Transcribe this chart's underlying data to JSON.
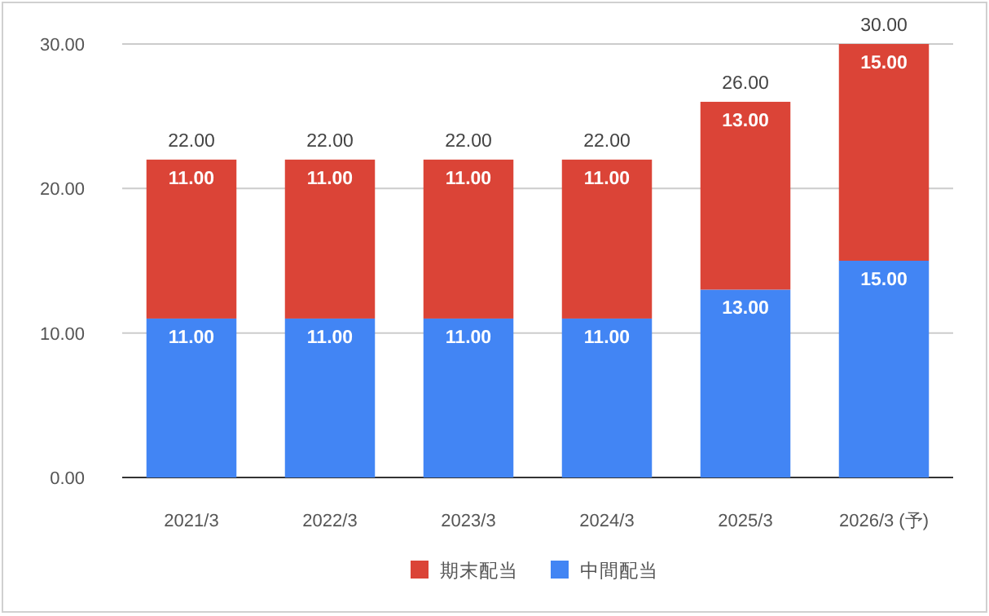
{
  "chart_data": {
    "type": "bar",
    "stacked": true,
    "categories": [
      "2021/3",
      "2022/3",
      "2023/3",
      "2024/3",
      "2025/3",
      "2026/3 (予)"
    ],
    "series": [
      {
        "name": "中間配当",
        "color": "#4285f4",
        "values": [
          11,
          11,
          11,
          11,
          13,
          15
        ],
        "value_labels": [
          "11.00",
          "11.00",
          "11.00",
          "11.00",
          "13.00",
          "15.00"
        ]
      },
      {
        "name": "期末配当",
        "color": "#db4437",
        "values": [
          11,
          11,
          11,
          11,
          13,
          15
        ],
        "value_labels": [
          "11.00",
          "11.00",
          "11.00",
          "11.00",
          "13.00",
          "15.00"
        ]
      }
    ],
    "totals": [
      "22.00",
      "22.00",
      "22.00",
      "22.00",
      "26.00",
      "30.00"
    ],
    "ylim": [
      0,
      30
    ],
    "yticks": [
      {
        "value": 0,
        "label": "0.00"
      },
      {
        "value": 10,
        "label": "10.00"
      },
      {
        "value": 20,
        "label": "20.00"
      },
      {
        "value": 30,
        "label": "30.00"
      }
    ],
    "grid": "y",
    "legend": "bottom"
  }
}
